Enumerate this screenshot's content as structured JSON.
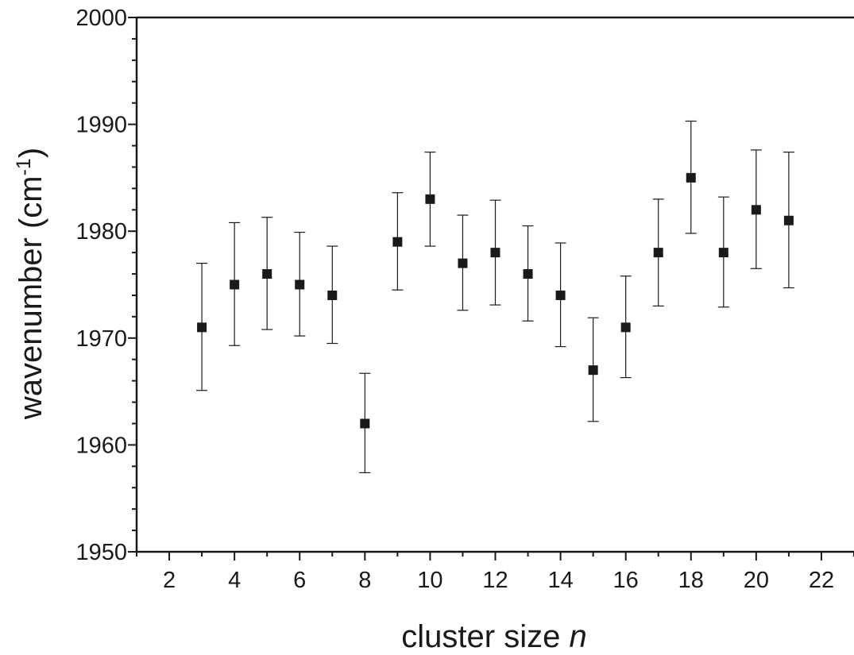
{
  "chart_data": {
    "type": "scatter",
    "title": "",
    "xlabel": "cluster size",
    "xlabel_var": "n",
    "ylabel": "wavenumber (cm",
    "ylabel_sup": "-1",
    "ylabel_close": ")",
    "xlim": [
      1,
      23
    ],
    "ylim": [
      1950,
      2000
    ],
    "x_ticks": [
      2,
      4,
      6,
      8,
      10,
      12,
      14,
      16,
      18,
      20,
      22
    ],
    "y_ticks": [
      1950,
      1960,
      1970,
      1980,
      1990,
      2000
    ],
    "y_minor_step": 2,
    "x_minor_step": 1,
    "grid": false,
    "legend": false,
    "marker": "filled-square",
    "color": "#1a1a1a",
    "series": [
      {
        "x": [
          3,
          4,
          5,
          6,
          7,
          8,
          9,
          10,
          11,
          12,
          13,
          14,
          15,
          16,
          17,
          18,
          19,
          20,
          21
        ],
        "y": [
          1971,
          1975,
          1976,
          1975,
          1974,
          1962,
          1979,
          1983,
          1977,
          1978,
          1976,
          1974,
          1967,
          1971,
          1978,
          1985,
          1978,
          1982,
          1981
        ],
        "yerr_low": [
          1965.1,
          1969.3,
          1970.8,
          1970.2,
          1969.5,
          1957.4,
          1974.5,
          1978.6,
          1972.6,
          1973.1,
          1971.6,
          1969.2,
          1962.2,
          1966.3,
          1973.0,
          1979.8,
          1972.9,
          1976.5,
          1974.7
        ],
        "yerr_high": [
          1977.0,
          1980.8,
          1981.3,
          1979.9,
          1978.6,
          1966.7,
          1983.6,
          1987.4,
          1981.5,
          1982.9,
          1980.5,
          1978.9,
          1971.9,
          1975.8,
          1983.0,
          1990.3,
          1983.2,
          1987.6,
          1987.4
        ]
      }
    ]
  }
}
